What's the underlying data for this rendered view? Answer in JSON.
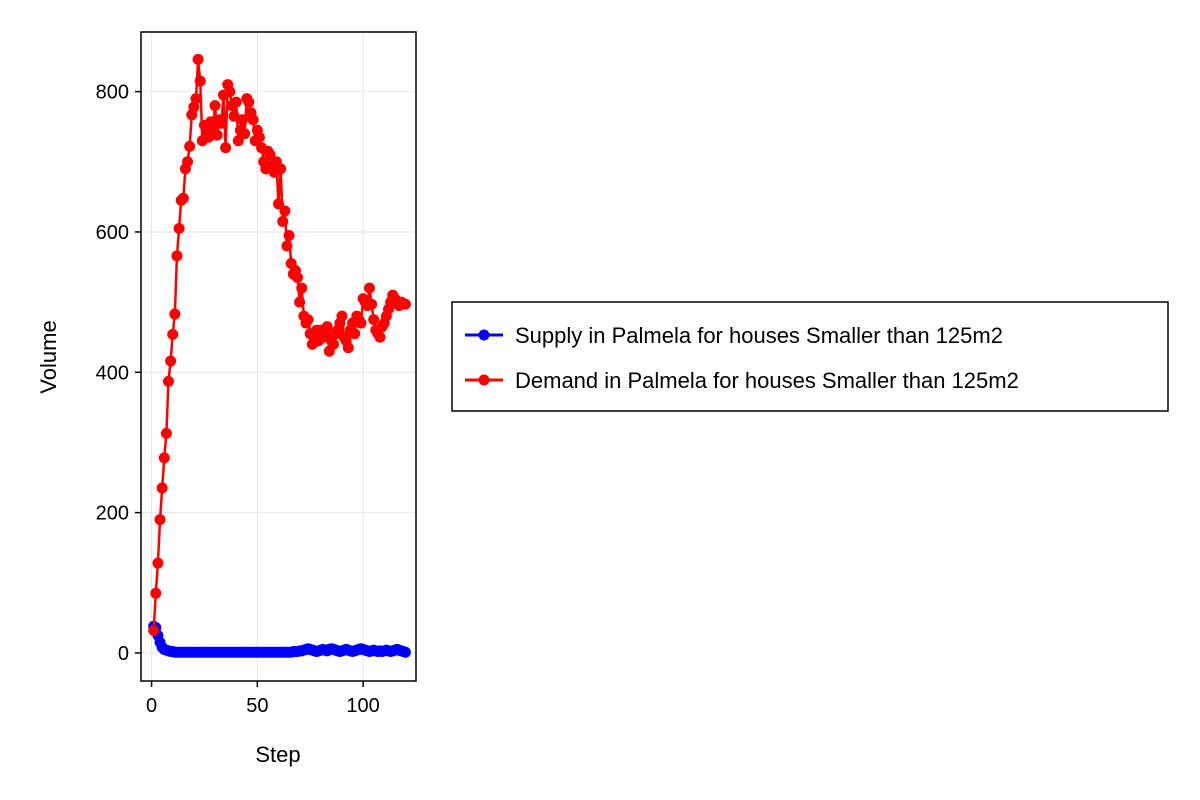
{
  "chart_data": {
    "type": "scatter",
    "title": "",
    "xlabel": "Step",
    "ylabel": "Volume",
    "xlim": [
      -5,
      125
    ],
    "ylim": [
      -40,
      885
    ],
    "xticks": [
      0,
      50,
      100
    ],
    "yticks": [
      0,
      200,
      400,
      600,
      800
    ],
    "grid": true,
    "legend_position": "right",
    "series": [
      {
        "name": "Supply in Palmela for houses Smaller than 125m2",
        "color": "#0000ff",
        "x": [
          1,
          2,
          3,
          4,
          5,
          6,
          7,
          8,
          9,
          10,
          11,
          12,
          13,
          14,
          15,
          16,
          17,
          18,
          19,
          20,
          21,
          22,
          23,
          24,
          25,
          26,
          27,
          28,
          29,
          30,
          31,
          32,
          33,
          34,
          35,
          36,
          37,
          38,
          39,
          40,
          41,
          42,
          43,
          44,
          45,
          46,
          47,
          48,
          49,
          50,
          51,
          52,
          53,
          54,
          55,
          56,
          57,
          58,
          59,
          60,
          61,
          62,
          63,
          64,
          65,
          66,
          67,
          68,
          69,
          70,
          71,
          72,
          73,
          74,
          75,
          76,
          77,
          78,
          79,
          80,
          81,
          82,
          83,
          84,
          85,
          86,
          87,
          88,
          89,
          90,
          91,
          92,
          93,
          94,
          95,
          96,
          97,
          98,
          99,
          100,
          101,
          102,
          103,
          104,
          105,
          106,
          107,
          108,
          109,
          110,
          111,
          112,
          113,
          114,
          115,
          116,
          117,
          118,
          119,
          120
        ],
        "values": [
          38,
          36,
          25,
          15,
          8,
          5,
          4,
          3,
          2,
          2,
          1,
          1,
          1,
          1,
          1,
          1,
          1,
          1,
          1,
          1,
          1,
          1,
          1,
          1,
          1,
          1,
          1,
          1,
          1,
          1,
          1,
          1,
          1,
          1,
          1,
          1,
          1,
          1,
          1,
          1,
          1,
          1,
          1,
          1,
          1,
          1,
          1,
          1,
          1,
          1,
          1,
          1,
          1,
          1,
          1,
          1,
          1,
          1,
          1,
          1,
          1,
          1,
          1,
          1,
          1,
          1,
          2,
          2,
          2,
          3,
          3,
          4,
          5,
          6,
          5,
          4,
          3,
          2,
          3,
          4,
          5,
          4,
          3,
          5,
          6,
          5,
          4,
          3,
          2,
          3,
          4,
          5,
          4,
          3,
          2,
          3,
          4,
          5,
          6,
          5,
          4,
          3,
          2,
          3,
          4,
          3,
          2,
          3,
          2,
          3,
          4,
          3,
          2,
          3,
          4,
          5,
          4,
          3,
          2,
          1
        ]
      },
      {
        "name": "Demand in Palmela for houses Smaller than 125m2",
        "color": "#ff0000",
        "x": [
          1,
          2,
          3,
          4,
          5,
          6,
          7,
          8,
          9,
          10,
          11,
          12,
          13,
          14,
          15,
          16,
          17,
          18,
          19,
          20,
          21,
          22,
          23,
          24,
          25,
          26,
          27,
          28,
          29,
          30,
          31,
          32,
          33,
          34,
          35,
          36,
          37,
          38,
          39,
          40,
          41,
          42,
          43,
          44,
          45,
          46,
          47,
          48,
          49,
          50,
          51,
          52,
          53,
          54,
          55,
          56,
          57,
          58,
          59,
          60,
          61,
          62,
          63,
          64,
          65,
          66,
          67,
          68,
          69,
          70,
          71,
          72,
          73,
          74,
          75,
          76,
          77,
          78,
          79,
          80,
          81,
          82,
          83,
          84,
          85,
          86,
          87,
          88,
          89,
          90,
          91,
          92,
          93,
          94,
          95,
          96,
          97,
          98,
          99,
          100,
          101,
          102,
          103,
          104,
          105,
          106,
          107,
          108,
          109,
          110,
          111,
          112,
          113,
          114,
          115,
          116,
          117,
          118,
          119,
          120
        ],
        "values": [
          32,
          85,
          128,
          190,
          235,
          278,
          313,
          387,
          416,
          454,
          483,
          566,
          605,
          645,
          648,
          690,
          700,
          722,
          767,
          778,
          790,
          846,
          815,
          730,
          752,
          742,
          735,
          757,
          745,
          780,
          738,
          760,
          755,
          795,
          720,
          810,
          800,
          780,
          765,
          785,
          730,
          745,
          760,
          740,
          790,
          785,
          770,
          760,
          730,
          745,
          735,
          720,
          700,
          690,
          715,
          710,
          695,
          685,
          700,
          640,
          690,
          615,
          630,
          580,
          595,
          555,
          540,
          545,
          535,
          500,
          520,
          480,
          470,
          475,
          455,
          440,
          450,
          460,
          445,
          460,
          450,
          455,
          465,
          430,
          445,
          440,
          455,
          460,
          470,
          480,
          450,
          445,
          435,
          460,
          470,
          455,
          480,
          475,
          470,
          505,
          500,
          495,
          520,
          497,
          475,
          460,
          455,
          450,
          465,
          470,
          480,
          490,
          500,
          510,
          505,
          500,
          495,
          500,
          498,
          497
        ]
      }
    ]
  }
}
